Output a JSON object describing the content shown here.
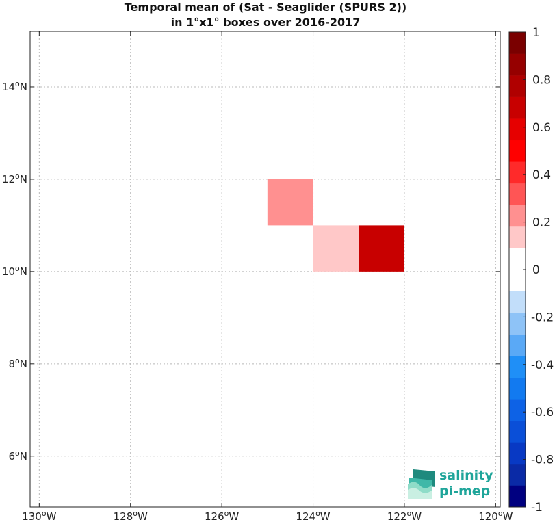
{
  "chart_data": {
    "type": "heatmap",
    "title": [
      "Temporal mean of (Sat - Seaglider (SPURS 2))",
      "in 1°x1° boxes over 2016-2017"
    ],
    "xlim": [
      -130.2,
      -119.9
    ],
    "ylim": [
      4.9,
      15.2
    ],
    "x_ticks": [
      {
        "value": -130,
        "label": "130",
        "suffix": "W"
      },
      {
        "value": -128,
        "label": "128",
        "suffix": "W"
      },
      {
        "value": -126,
        "label": "126",
        "suffix": "W"
      },
      {
        "value": -124,
        "label": "124",
        "suffix": "W"
      },
      {
        "value": -122,
        "label": "122",
        "suffix": "W"
      },
      {
        "value": -120,
        "label": "120",
        "suffix": "W"
      }
    ],
    "y_ticks": [
      {
        "value": 6,
        "label": "6",
        "suffix": "N"
      },
      {
        "value": 8,
        "label": "8",
        "suffix": "N"
      },
      {
        "value": 10,
        "label": "10",
        "suffix": "N"
      },
      {
        "value": 12,
        "label": "12",
        "suffix": "N"
      },
      {
        "value": 14,
        "label": "14",
        "suffix": "N"
      }
    ],
    "grid": true,
    "cells": [
      {
        "lon_min": -125,
        "lon_max": -124,
        "lat_min": 11,
        "lat_max": 12,
        "value": 0.25
      },
      {
        "lon_min": -124,
        "lon_max": -123,
        "lat_min": 10,
        "lat_max": 11,
        "value": 0.15
      },
      {
        "lon_min": -123,
        "lon_max": -122,
        "lat_min": 10,
        "lat_max": 11,
        "value": 0.65
      }
    ],
    "colorbar": {
      "range": [
        -1,
        1
      ],
      "colors": [
        "#000080",
        "#0a2aa6",
        "#0839c4",
        "#0a4fd8",
        "#0d62e6",
        "#127af0",
        "#1f8ff7",
        "#5aa9f6",
        "#8ec3f7",
        "#c2defa",
        "#ffffff",
        "#ffffff",
        "#ffc8c8",
        "#ff9090",
        "#ff5555",
        "#ff2a2a",
        "#ff0000",
        "#e60000",
        "#c80000",
        "#b00000",
        "#960000",
        "#7a0000"
      ],
      "ticks": [
        {
          "value": 1,
          "label": "1"
        },
        {
          "value": 0.8,
          "label": "0.8"
        },
        {
          "value": 0.6,
          "label": "0.6"
        },
        {
          "value": 0.4,
          "label": "0.4"
        },
        {
          "value": 0.2,
          "label": "0.2"
        },
        {
          "value": 0,
          "label": "0"
        },
        {
          "value": -0.2,
          "label": "-0.2"
        },
        {
          "value": -0.4,
          "label": "-0.4"
        },
        {
          "value": -0.6,
          "label": "-0.6"
        },
        {
          "value": -0.8,
          "label": "-0.8"
        },
        {
          "value": -1,
          "label": "-1"
        }
      ]
    }
  },
  "logo": {
    "line1": "salinity",
    "line2": "pi-mep",
    "color": "#1fa59a"
  }
}
